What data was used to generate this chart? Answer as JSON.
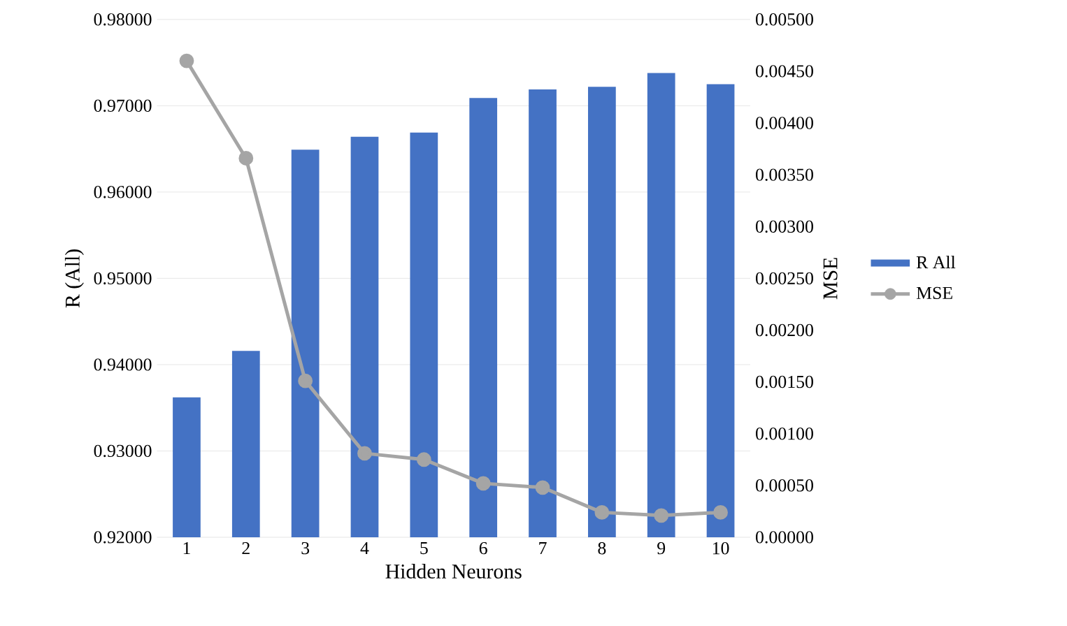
{
  "chart_data": {
    "type": "bar",
    "xlabel": "Hidden Neurons",
    "ylabel": "R (All)",
    "y2label": "MSE",
    "categories": [
      "1",
      "2",
      "3",
      "4",
      "5",
      "6",
      "7",
      "8",
      "9",
      "10"
    ],
    "series": [
      {
        "name": "R All",
        "color": "#4472c4",
        "values": [
          0.9362,
          0.9416,
          0.9649,
          0.9664,
          0.9669,
          0.9709,
          0.9719,
          0.9722,
          0.9738,
          0.9725
        ]
      },
      {
        "name": "MSE",
        "type": "line",
        "axis": "y2",
        "color": "#a5a5a5",
        "marker": "circle",
        "values": [
          0.0046,
          0.00366,
          0.00151,
          0.00081,
          0.00075,
          0.00052,
          0.00048,
          0.00024,
          0.00021,
          0.00024
        ]
      }
    ],
    "ylim": [
      0.92,
      0.98
    ],
    "yticks": [
      {
        "value": 0.92,
        "label": "0.92000"
      },
      {
        "value": 0.93,
        "label": "0.93000"
      },
      {
        "value": 0.94,
        "label": "0.94000"
      },
      {
        "value": 0.95,
        "label": "0.95000"
      },
      {
        "value": 0.96,
        "label": "0.96000"
      },
      {
        "value": 0.97,
        "label": "0.97000"
      },
      {
        "value": 0.98,
        "label": "0.98000"
      }
    ],
    "y2lim": [
      0,
      0.005
    ],
    "y2ticks": [
      {
        "value": 0,
        "label": "0.00000"
      },
      {
        "value": 0.0005,
        "label": "0.00050"
      },
      {
        "value": 0.001,
        "label": "0.00100"
      },
      {
        "value": 0.0015,
        "label": "0.00150"
      },
      {
        "value": 0.002,
        "label": "0.00200"
      },
      {
        "value": 0.0025,
        "label": "0.00250"
      },
      {
        "value": 0.003,
        "label": "0.00300"
      },
      {
        "value": 0.0035,
        "label": "0.00350"
      },
      {
        "value": 0.004,
        "label": "0.00400"
      },
      {
        "value": 0.0045,
        "label": "0.00450"
      },
      {
        "value": 0.005,
        "label": "0.00500"
      }
    ],
    "grid": "y",
    "legend": "right"
  }
}
